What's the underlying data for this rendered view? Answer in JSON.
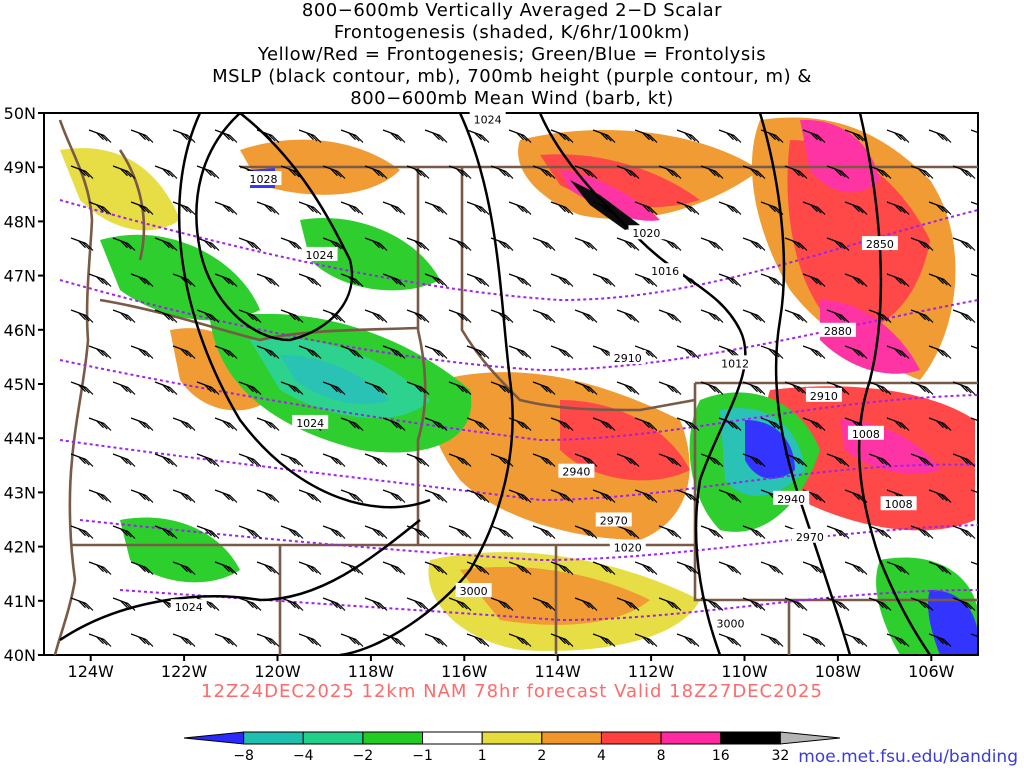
{
  "title": {
    "lines": [
      "800−600mb Vertically Averaged 2−D Scalar",
      "Frontogenesis (shaded, K/6hr/100km)",
      "Yellow/Red = Frontogenesis;  Green/Blue = Frontolysis",
      "MSLP (black contour, mb), 700mb height (purple contour, m) &",
      "800−600mb Mean Wind (barb, kt)"
    ]
  },
  "map": {
    "lat_range": [
      40,
      50
    ],
    "lon_range": [
      -125,
      -105
    ],
    "lat_labels": [
      "50N",
      "49N",
      "48N",
      "47N",
      "46N",
      "45N",
      "44N",
      "43N",
      "42N",
      "41N",
      "40N"
    ],
    "lon_labels": [
      "124W",
      "122W",
      "120W",
      "118W",
      "116W",
      "114W",
      "112W",
      "110W",
      "108W",
      "106W"
    ],
    "mslp_labels": [
      {
        "text": "1024",
        "lon": -115.5,
        "lat": 49.9
      },
      {
        "text": "1028",
        "lon": -120.3,
        "lat": 48.8
      },
      {
        "text": "1024",
        "lon": -119.1,
        "lat": 47.4
      },
      {
        "text": "1020",
        "lon": -112.1,
        "lat": 47.8
      },
      {
        "text": "1016",
        "lon": -111.7,
        "lat": 47.1
      },
      {
        "text": "1012",
        "lon": -110.2,
        "lat": 45.4
      },
      {
        "text": "1008",
        "lon": -107.4,
        "lat": 44.1
      },
      {
        "text": "1008",
        "lon": -106.7,
        "lat": 42.8
      },
      {
        "text": "1024",
        "lon": -119.3,
        "lat": 44.3
      },
      {
        "text": "1020",
        "lon": -112.5,
        "lat": 42.0
      },
      {
        "text": "1024",
        "lon": -121.9,
        "lat": 40.9
      }
    ],
    "height_labels": [
      {
        "text": "2850",
        "lon": -107.1,
        "lat": 47.6
      },
      {
        "text": "2880",
        "lon": -108.0,
        "lat": 46.0
      },
      {
        "text": "2910",
        "lon": -112.5,
        "lat": 45.5
      },
      {
        "text": "2910",
        "lon": -108.3,
        "lat": 44.8
      },
      {
        "text": "2940",
        "lon": -113.6,
        "lat": 43.4
      },
      {
        "text": "2940",
        "lon": -109.0,
        "lat": 42.9
      },
      {
        "text": "2970",
        "lon": -112.8,
        "lat": 42.5
      },
      {
        "text": "2970",
        "lon": -108.6,
        "lat": 42.2
      },
      {
        "text": "3000",
        "lon": -115.8,
        "lat": 41.2
      },
      {
        "text": "3000",
        "lon": -110.3,
        "lat": 40.6
      }
    ]
  },
  "valid_text": "12Z24DEC2025 12km NAM 78hr forecast Valid 18Z27DEC2025",
  "colorbar": {
    "ticks": [
      "−8",
      "−4",
      "−2",
      "−1",
      "1",
      "2",
      "4",
      "8",
      "16",
      "32"
    ],
    "colors": [
      "#2a2aff",
      "#1fbfb0",
      "#22d08a",
      "#22cc22",
      "#ffffff",
      "#e6dc3c",
      "#f0962a",
      "#ff4040",
      "#ff2aa0",
      "#000000",
      "#b4b4b4"
    ]
  },
  "credit": "moe.met.fsu.edu/banding"
}
